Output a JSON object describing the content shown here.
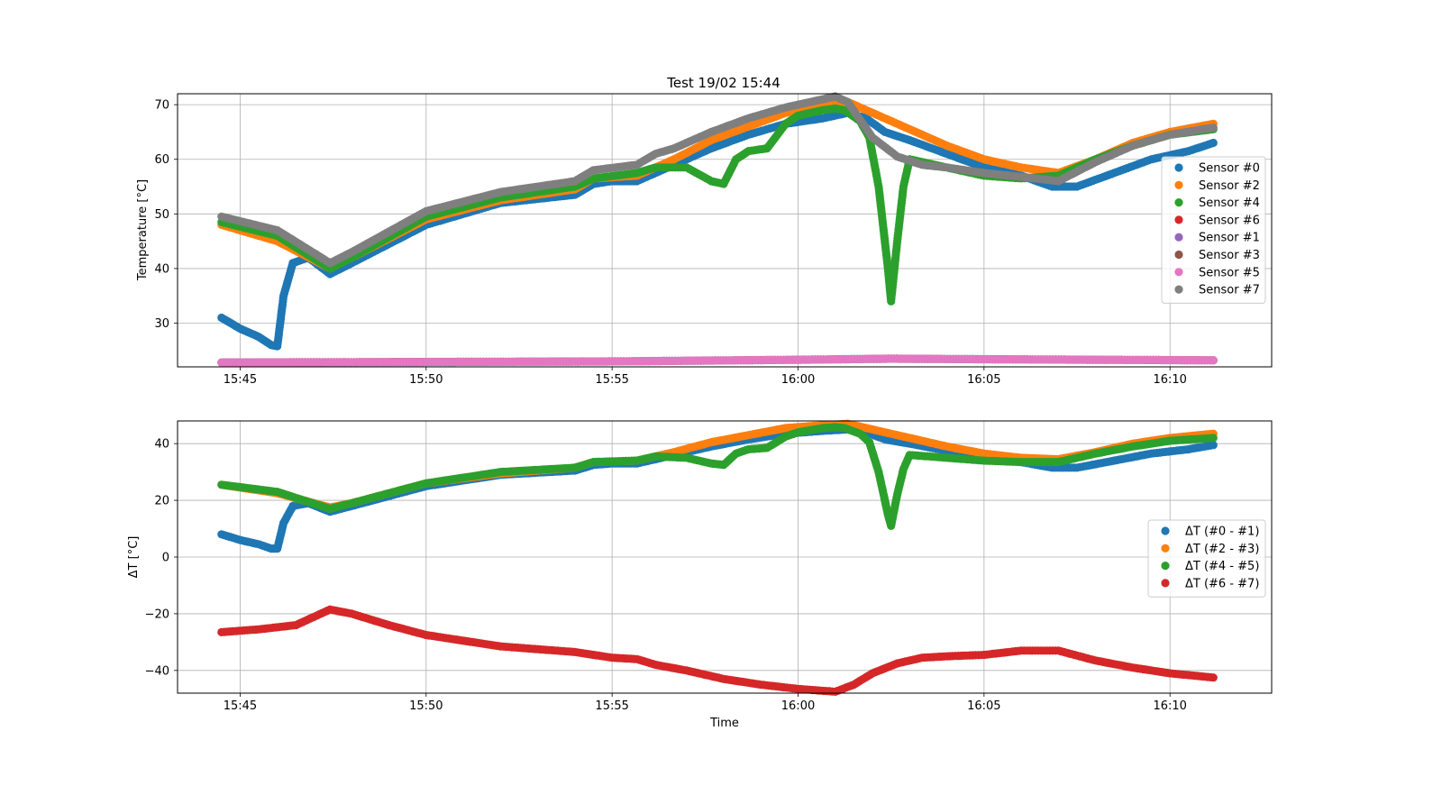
{
  "title": "Test 19/02 15:44",
  "chart_data": [
    {
      "type": "scatter",
      "title": "Test 19/02 15:44",
      "xlabel": "",
      "ylabel": "Temperature [°C]",
      "x_unit": "time (HH:MM)",
      "xlim": [
        "15:43:19",
        "16:12:44"
      ],
      "ylim": [
        22,
        72
      ],
      "xticks": [
        "15:45",
        "15:50",
        "15:55",
        "16:00",
        "16:05",
        "16:10"
      ],
      "yticks": [
        30,
        40,
        50,
        60,
        70
      ],
      "grid": true,
      "legend_position": "center-right",
      "colors": {
        "Sensor #0": "#1f77b4",
        "Sensor #2": "#ff7f0e",
        "Sensor #4": "#2ca02c",
        "Sensor #6": "#d62728",
        "Sensor #1": "#9467bd",
        "Sensor #3": "#8c564b",
        "Sensor #5": "#e377c2",
        "Sensor #7": "#7f7f7f"
      },
      "legend": [
        "Sensor #0",
        "Sensor #2",
        "Sensor #4",
        "Sensor #6",
        "Sensor #1",
        "Sensor #3",
        "Sensor #5",
        "Sensor #7"
      ],
      "series": [
        {
          "name": "Sensor #0",
          "x": [
            "15:44:30",
            "15:45:00",
            "15:45:30",
            "15:45:50",
            "15:46:00",
            "15:46:10",
            "15:46:25",
            "15:46:50",
            "15:47:25",
            "15:48:00",
            "15:50:00",
            "15:52:00",
            "15:54:00",
            "15:54:30",
            "15:55:00",
            "15:55:40",
            "15:56:40",
            "15:57:40",
            "15:58:40",
            "15:59:40",
            "16:00:40",
            "16:01:20",
            "16:01:50",
            "16:02:20",
            "16:03:00",
            "16:04:00",
            "16:05:00",
            "16:06:00",
            "16:06:50",
            "16:07:30",
            "16:08:30",
            "16:09:30",
            "16:10:30",
            "16:11:10"
          ],
          "y": [
            31,
            29,
            27.5,
            26,
            25.8,
            35,
            41,
            42,
            39,
            41,
            48,
            52,
            53.5,
            55.5,
            56,
            56,
            59,
            62,
            64.5,
            66.5,
            67.5,
            68.5,
            67.5,
            65,
            63.5,
            61,
            58.5,
            57,
            55,
            55,
            57.5,
            60,
            61.5,
            63
          ]
        },
        {
          "name": "Sensor #2",
          "x": [
            "15:44:30",
            "15:46:00",
            "15:47:25",
            "15:48:00",
            "15:50:00",
            "15:52:00",
            "15:54:00",
            "15:54:30",
            "15:55:40",
            "15:56:40",
            "15:57:40",
            "15:58:40",
            "15:59:40",
            "16:00:40",
            "16:01:20",
            "16:02:00",
            "16:03:00",
            "16:04:00",
            "16:05:00",
            "16:06:00",
            "16:07:00",
            "16:08:00",
            "16:09:00",
            "16:10:00",
            "16:11:10"
          ],
          "y": [
            48,
            45,
            40,
            42,
            49,
            52.5,
            54.5,
            56.5,
            57,
            60,
            63.5,
            66,
            68.5,
            70,
            70.5,
            68.5,
            65.5,
            62.5,
            60,
            58.5,
            57.5,
            60,
            63,
            65,
            66.5
          ]
        },
        {
          "name": "Sensor #4",
          "x": [
            "15:44:30",
            "15:46:00",
            "15:47:25",
            "15:48:00",
            "15:50:00",
            "15:52:00",
            "15:54:00",
            "15:54:30",
            "15:55:40",
            "15:56:10",
            "15:57:00",
            "15:57:40",
            "15:58:00",
            "15:58:20",
            "15:58:40",
            "15:59:10",
            "15:59:40",
            "16:00:00",
            "16:00:40",
            "16:01:00",
            "16:01:15",
            "16:01:40",
            "16:01:55",
            "16:02:10",
            "16:02:20",
            "16:02:25",
            "16:02:30",
            "16:02:40",
            "16:02:50",
            "16:03:00",
            "16:04:00",
            "16:05:00",
            "16:06:00",
            "16:07:00",
            "16:08:00",
            "16:09:00",
            "16:10:00",
            "16:11:10"
          ],
          "y": [
            48.5,
            46,
            40,
            42,
            49.5,
            53,
            55,
            56.5,
            57.5,
            58.5,
            58.5,
            56,
            55.5,
            60,
            61.5,
            62,
            66.5,
            68,
            69,
            69.3,
            69,
            67,
            64,
            55,
            45,
            40,
            34,
            45,
            55,
            60,
            58.5,
            57,
            56.5,
            57,
            60,
            62.5,
            64.5,
            65.5
          ]
        },
        {
          "name": "Sensor #6",
          "x": [],
          "y": []
        },
        {
          "name": "Sensor #1",
          "x": [
            "15:44:30",
            "15:50:00",
            "15:55:00",
            "16:00:00",
            "16:02:30",
            "16:05:00",
            "16:11:10"
          ],
          "y": [
            22.8,
            22.9,
            23,
            23.3,
            23.5,
            23.4,
            23.2
          ]
        },
        {
          "name": "Sensor #3",
          "x": [
            "15:44:30",
            "15:50:00",
            "15:55:00",
            "16:00:00",
            "16:02:30",
            "16:05:00",
            "16:11:10"
          ],
          "y": [
            22.8,
            22.9,
            23,
            23.3,
            23.5,
            23.4,
            23.2
          ]
        },
        {
          "name": "Sensor #5",
          "x": [
            "15:44:30",
            "15:50:00",
            "15:55:00",
            "16:00:00",
            "16:02:30",
            "16:05:00",
            "16:11:10"
          ],
          "y": [
            22.8,
            22.9,
            23,
            23.3,
            23.5,
            23.4,
            23.2
          ]
        },
        {
          "name": "Sensor #7",
          "x": [
            "15:44:30",
            "15:46:00",
            "15:47:25",
            "15:48:00",
            "15:50:00",
            "15:52:00",
            "15:54:00",
            "15:54:30",
            "15:55:40",
            "15:56:10",
            "15:56:40",
            "15:57:40",
            "15:58:40",
            "15:59:40",
            "16:00:40",
            "16:01:00",
            "16:01:20",
            "16:02:00",
            "16:02:40",
            "16:03:20",
            "16:04:00",
            "16:05:00",
            "16:06:00",
            "16:07:00",
            "16:08:00",
            "16:09:00",
            "16:10:00",
            "16:11:10"
          ],
          "y": [
            49.5,
            47,
            41,
            43,
            50.5,
            54,
            56,
            58,
            59,
            61,
            62,
            65,
            67.5,
            69.5,
            71,
            71.5,
            70.5,
            64,
            60.5,
            59,
            58.5,
            57.5,
            56.8,
            56,
            59.5,
            62.5,
            64.5,
            65.8
          ]
        }
      ]
    },
    {
      "type": "scatter",
      "title": "",
      "xlabel": "Time",
      "ylabel": "ΔT [°C]",
      "x_unit": "time (HH:MM)",
      "xlim": [
        "15:43:19",
        "16:12:44"
      ],
      "ylim": [
        -48,
        48
      ],
      "xticks": [
        "15:45",
        "15:50",
        "15:55",
        "16:00",
        "16:05",
        "16:10"
      ],
      "yticks": [
        40,
        20,
        0,
        -20,
        -40
      ],
      "ytick_labels": [
        "40",
        "20",
        "0",
        "−20",
        "−40"
      ],
      "grid": true,
      "legend_position": "center-right",
      "colors": {
        "ΔT (#0 - #1)": "#1f77b4",
        "ΔT (#2 - #3)": "#ff7f0e",
        "ΔT (#4 - #5)": "#2ca02c",
        "ΔT (#6 - #7)": "#d62728"
      },
      "legend": [
        "ΔT (#0 - #1)",
        "ΔT (#2 - #3)",
        "ΔT (#4 - #5)",
        "ΔT (#6 - #7)"
      ],
      "series": [
        {
          "name": "ΔT (#0 - #1)",
          "x": [
            "15:44:30",
            "15:45:00",
            "15:45:30",
            "15:45:50",
            "15:46:00",
            "15:46:10",
            "15:46:25",
            "15:46:50",
            "15:47:25",
            "15:48:00",
            "15:50:00",
            "15:52:00",
            "15:54:00",
            "15:54:30",
            "15:55:00",
            "15:55:40",
            "15:56:40",
            "15:57:40",
            "15:58:40",
            "15:59:40",
            "16:00:40",
            "16:01:20",
            "16:01:50",
            "16:02:20",
            "16:03:00",
            "16:04:00",
            "16:05:00",
            "16:06:00",
            "16:06:50",
            "16:07:30",
            "16:08:30",
            "16:09:30",
            "16:10:30",
            "16:11:10"
          ],
          "y": [
            8,
            6,
            4.5,
            3,
            3,
            12,
            18,
            19,
            16,
            18,
            25,
            29,
            30.5,
            32.5,
            33,
            33,
            36,
            39,
            41.5,
            43.5,
            44.5,
            45,
            44,
            41.5,
            40,
            37.5,
            35,
            33.5,
            31.5,
            31.5,
            34,
            36.5,
            38,
            39.5
          ]
        },
        {
          "name": "ΔT (#2 - #3)",
          "x": [
            "15:44:30",
            "15:46:00",
            "15:47:25",
            "15:48:00",
            "15:50:00",
            "15:52:00",
            "15:54:00",
            "15:54:30",
            "15:55:40",
            "15:56:40",
            "15:57:40",
            "15:58:40",
            "15:59:40",
            "16:00:40",
            "16:01:20",
            "16:02:00",
            "16:03:00",
            "16:04:00",
            "16:05:00",
            "16:06:00",
            "16:07:00",
            "16:08:00",
            "16:09:00",
            "16:10:00",
            "16:11:10"
          ],
          "y": [
            25.5,
            22.5,
            17.5,
            19,
            26,
            29.5,
            31.5,
            33.5,
            34,
            37,
            40.5,
            43,
            45.5,
            46.5,
            47,
            45,
            42,
            39,
            36.5,
            35,
            34.5,
            37,
            40,
            42,
            43.5
          ]
        },
        {
          "name": "ΔT (#4 - #5)",
          "x": [
            "15:44:30",
            "15:46:00",
            "15:47:25",
            "15:48:00",
            "15:50:00",
            "15:52:00",
            "15:54:00",
            "15:54:30",
            "15:55:40",
            "15:56:10",
            "15:57:00",
            "15:57:40",
            "15:58:00",
            "15:58:20",
            "15:58:40",
            "15:59:10",
            "15:59:40",
            "16:00:00",
            "16:00:40",
            "16:01:00",
            "16:01:15",
            "16:01:40",
            "16:01:55",
            "16:02:10",
            "16:02:20",
            "16:02:25",
            "16:02:30",
            "16:02:40",
            "16:02:50",
            "16:03:00",
            "16:04:00",
            "16:05:00",
            "16:06:00",
            "16:07:00",
            "16:08:00",
            "16:09:00",
            "16:10:00",
            "16:11:10"
          ],
          "y": [
            25.5,
            23,
            17,
            19,
            26,
            30,
            31.5,
            33.5,
            34,
            35.5,
            35,
            33,
            32.5,
            36.5,
            38,
            38.5,
            42.5,
            44,
            45.5,
            45.8,
            45.5,
            43.5,
            40.5,
            30,
            20,
            15,
            11,
            22,
            31,
            36,
            35,
            34,
            33.5,
            33.5,
            36.5,
            39,
            41,
            42
          ]
        },
        {
          "name": "ΔT (#6 - #7)",
          "x": [
            "15:44:30",
            "15:45:30",
            "15:46:30",
            "15:47:00",
            "15:47:25",
            "15:48:00",
            "15:49:00",
            "15:50:00",
            "15:52:00",
            "15:54:00",
            "15:55:00",
            "15:55:40",
            "15:56:10",
            "15:57:00",
            "15:58:00",
            "15:59:00",
            "16:00:00",
            "16:01:00",
            "16:01:30",
            "16:02:00",
            "16:02:40",
            "16:03:20",
            "16:04:00",
            "16:05:00",
            "16:06:00",
            "16:07:00",
            "16:08:00",
            "16:09:00",
            "16:10:00",
            "16:11:10"
          ],
          "y": [
            -26.5,
            -25.5,
            -24,
            -21,
            -18.5,
            -20,
            -24,
            -27.5,
            -31.5,
            -33.5,
            -35.5,
            -36,
            -38,
            -40,
            -43,
            -45,
            -46.5,
            -47.5,
            -45,
            -41,
            -37.5,
            -35.5,
            -35,
            -34.5,
            -33,
            -33,
            -36.5,
            -39,
            -41,
            -42.5
          ]
        }
      ]
    }
  ]
}
